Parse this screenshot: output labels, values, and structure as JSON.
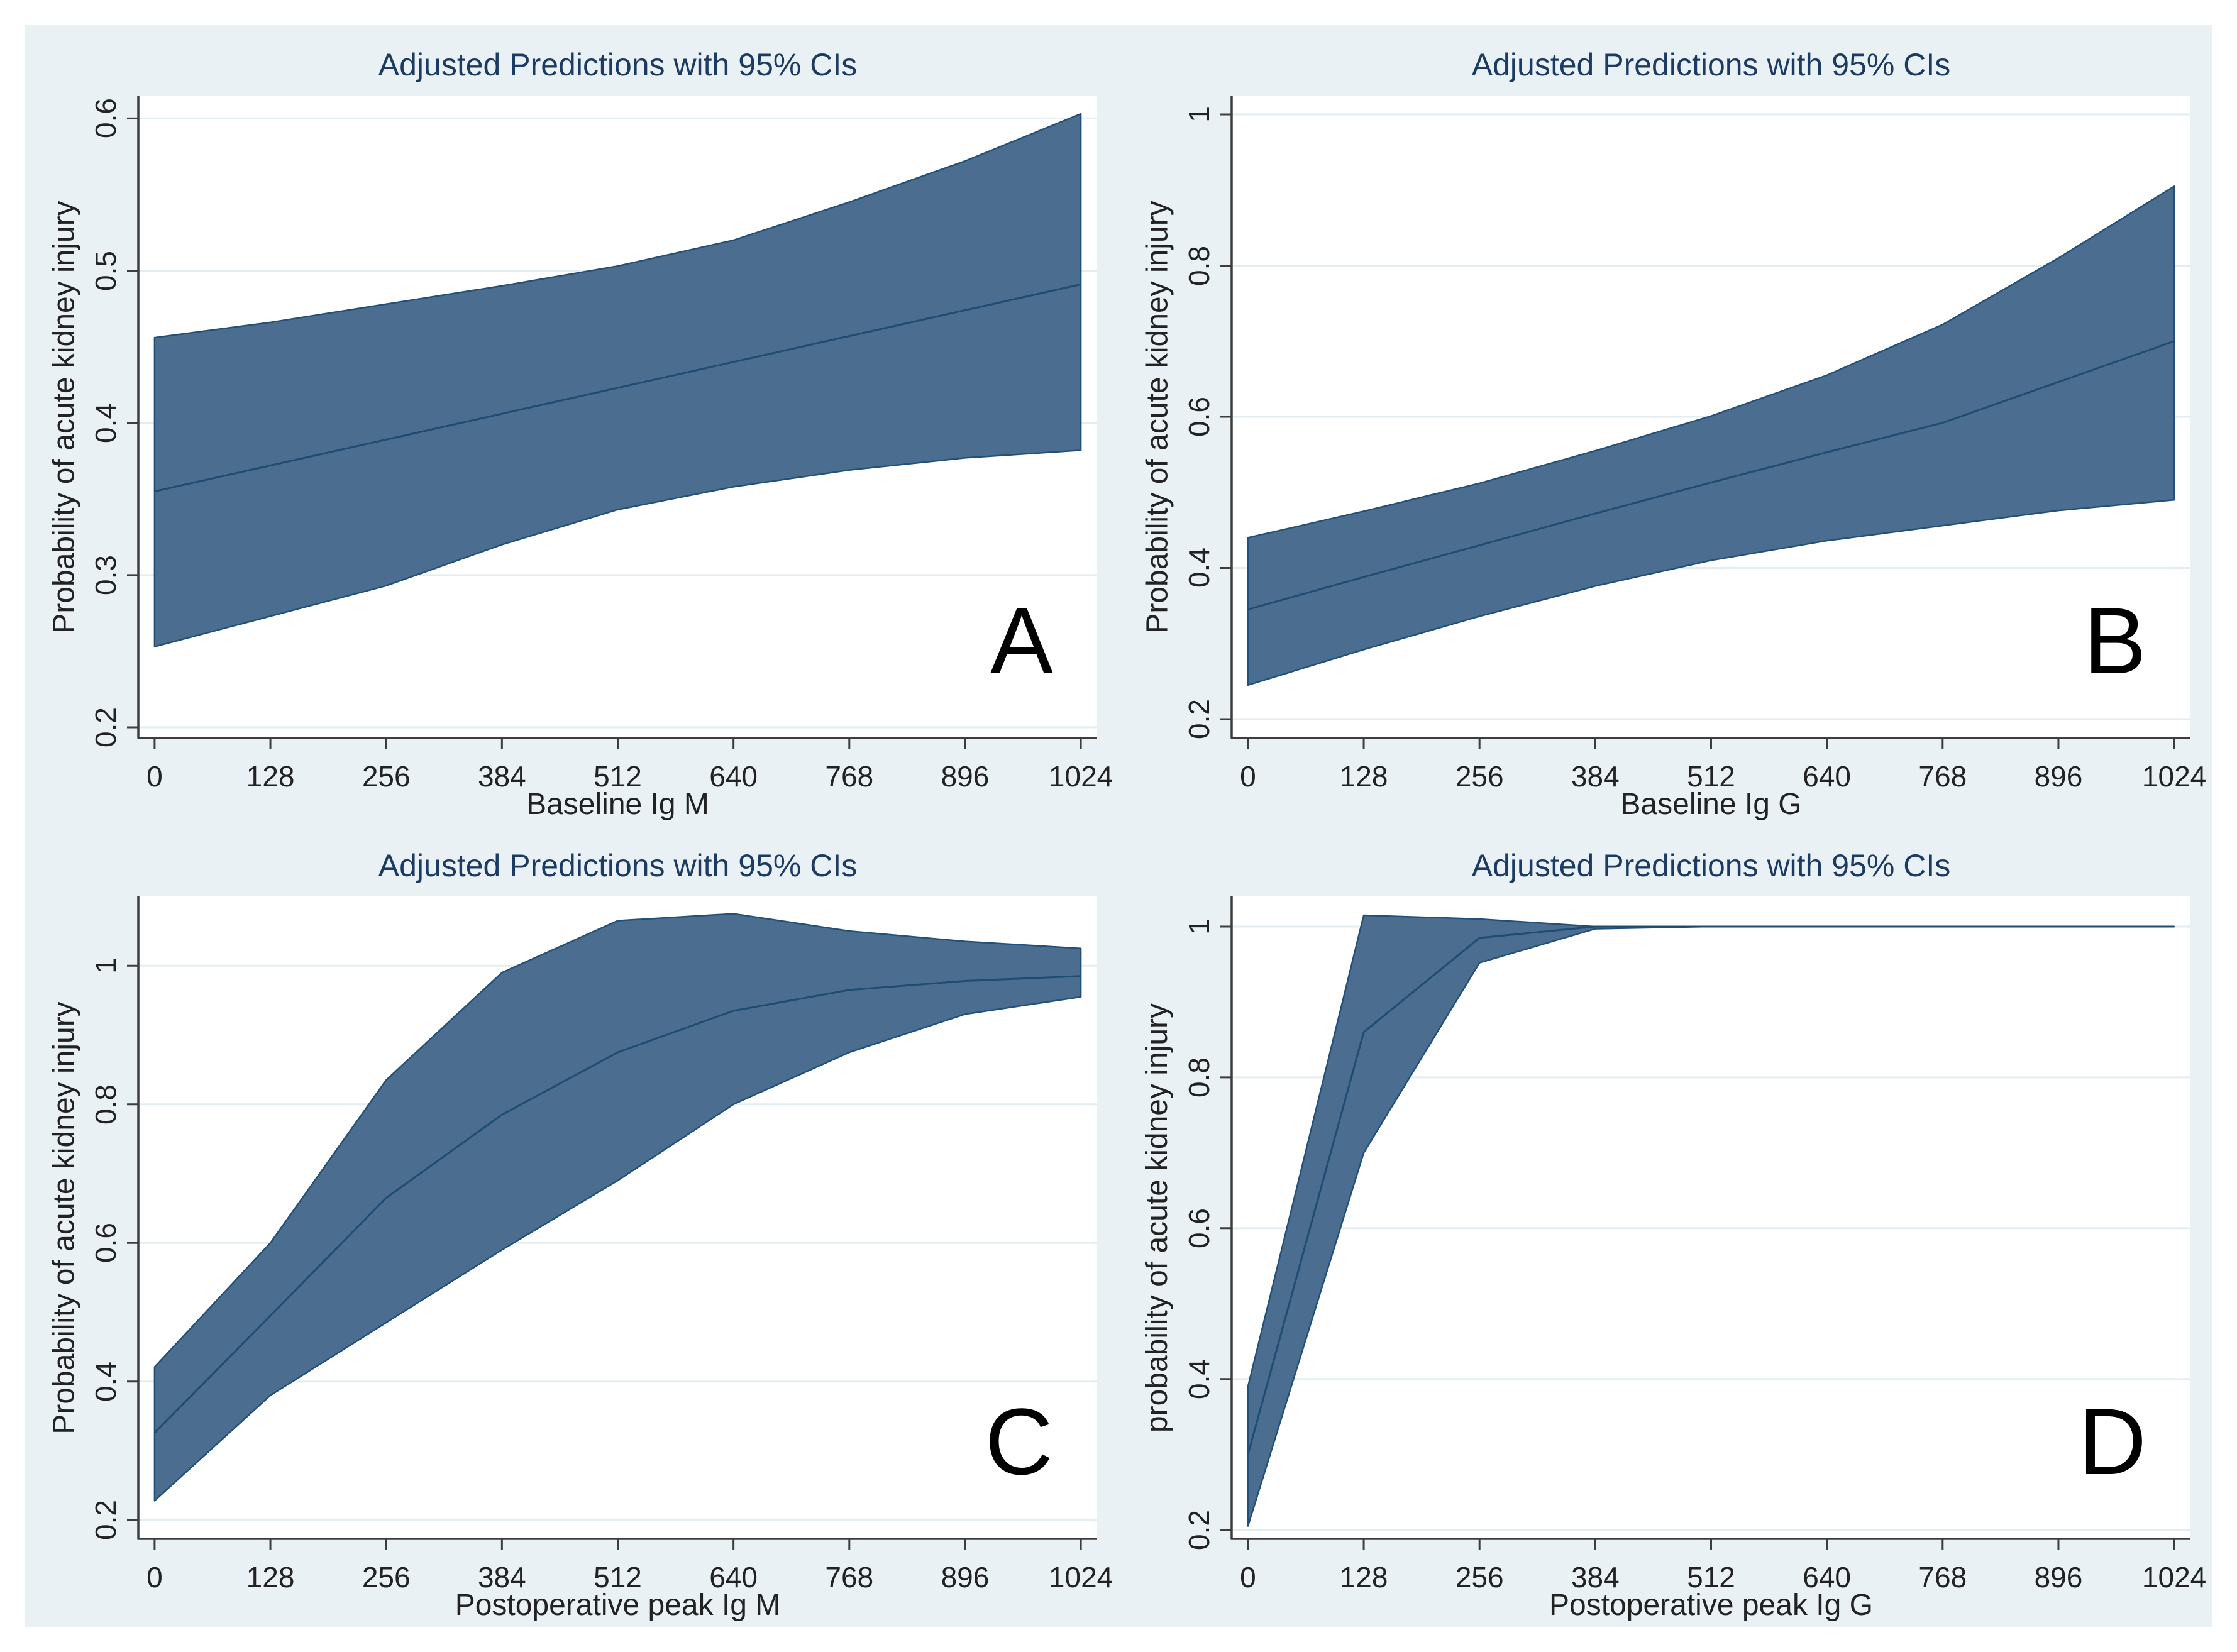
{
  "style": {
    "canvas_bg": "#e9f1f4",
    "plot_bg": "#ffffff",
    "grid_color": "#e3edf1",
    "band_fill": "#4a6d90",
    "band_edge": "#235078",
    "line_color": "#1f4c73",
    "axis_color": "#3d3d3d",
    "tick_text": "#222222",
    "title_color": "#1c3b63",
    "letter_color": "#000000"
  },
  "chart_data": [
    {
      "type": "area",
      "title": "Adjusted Predictions with 95% CIs",
      "letter": "A",
      "xlabel": "Baseline Ig M",
      "ylabel": "Probability of acute kidney injury",
      "x": [
        0,
        128,
        256,
        384,
        512,
        640,
        768,
        896,
        1024
      ],
      "xticks": [
        0,
        128,
        256,
        384,
        512,
        640,
        768,
        896,
        1024
      ],
      "xtick_labels": [
        "0",
        "128",
        "256",
        "384",
        "512",
        "640",
        "768",
        "896",
        "1024"
      ],
      "xlim": [
        -18,
        1042
      ],
      "yticks": [
        0.2,
        0.3,
        0.4,
        0.5,
        0.6
      ],
      "ytick_labels": [
        "0.2",
        "0.3",
        "0.4",
        "0.5",
        "0.6"
      ],
      "ylim": [
        0.193,
        0.615
      ],
      "grid": true,
      "legend": "none",
      "series": [
        {
          "name": "mean_prediction",
          "values": [
            0.355,
            0.372,
            0.389,
            0.406,
            0.423,
            0.44,
            0.457,
            0.474,
            0.491
          ]
        },
        {
          "name": "upper_95ci",
          "values": [
            0.456,
            0.466,
            0.478,
            0.49,
            0.503,
            0.52,
            0.545,
            0.572,
            0.603
          ]
        },
        {
          "name": "lower_95ci",
          "values": [
            0.253,
            0.273,
            0.293,
            0.32,
            0.343,
            0.358,
            0.369,
            0.377,
            0.382
          ]
        }
      ]
    },
    {
      "type": "area",
      "title": "Adjusted Predictions with 95% CIs",
      "letter": "B",
      "xlabel": "Baseline Ig G",
      "ylabel": "Probability of acute kidney injury",
      "x": [
        0,
        128,
        256,
        384,
        512,
        640,
        768,
        896,
        1024
      ],
      "xticks": [
        0,
        128,
        256,
        384,
        512,
        640,
        768,
        896,
        1024
      ],
      "xtick_labels": [
        "0",
        "128",
        "256",
        "384",
        "512",
        "640",
        "768",
        "896",
        "1024"
      ],
      "xlim": [
        -18,
        1042
      ],
      "yticks": [
        0.2,
        0.4,
        0.6,
        0.8,
        1
      ],
      "ytick_labels": [
        "0.2",
        "0.4",
        "0.6",
        "0.8",
        "1"
      ],
      "ylim": [
        0.175,
        1.025
      ],
      "grid": true,
      "legend": "none",
      "series": [
        {
          "name": "mean_prediction",
          "values": [
            0.345,
            0.388,
            0.43,
            0.472,
            0.513,
            0.553,
            0.592,
            0.646,
            0.7
          ]
        },
        {
          "name": "upper_95ci",
          "values": [
            0.44,
            0.475,
            0.512,
            0.555,
            0.601,
            0.655,
            0.722,
            0.81,
            0.905
          ]
        },
        {
          "name": "lower_95ci",
          "values": [
            0.245,
            0.292,
            0.336,
            0.376,
            0.41,
            0.436,
            0.456,
            0.476,
            0.49
          ]
        }
      ]
    },
    {
      "type": "area",
      "title": "Adjusted Predictions with 95% CIs",
      "letter": "C",
      "xlabel": "Postoperative peak Ig M",
      "ylabel": "Probability of acute kidney injury",
      "x": [
        0,
        128,
        256,
        384,
        512,
        640,
        768,
        896,
        1024
      ],
      "xticks": [
        0,
        128,
        256,
        384,
        512,
        640,
        768,
        896,
        1024
      ],
      "xtick_labels": [
        "0",
        "128",
        "256",
        "384",
        "512",
        "640",
        "768",
        "896",
        "1024"
      ],
      "xlim": [
        -18,
        1042
      ],
      "yticks": [
        0.2,
        0.4,
        0.6,
        0.8,
        1
      ],
      "ytick_labels": [
        "0.2",
        "0.4",
        "0.6",
        "0.8",
        "1"
      ],
      "ylim": [
        0.173,
        1.1
      ],
      "grid": true,
      "legend": "none",
      "series": [
        {
          "name": "mean_prediction",
          "values": [
            0.326,
            0.495,
            0.665,
            0.785,
            0.875,
            0.935,
            0.965,
            0.978,
            0.985
          ]
        },
        {
          "name": "upper_95ci",
          "values": [
            0.421,
            0.6,
            0.835,
            0.99,
            1.065,
            1.075,
            1.05,
            1.035,
            1.025
          ]
        },
        {
          "name": "lower_95ci",
          "values": [
            0.228,
            0.38,
            0.485,
            0.59,
            0.69,
            0.8,
            0.875,
            0.93,
            0.955
          ]
        }
      ]
    },
    {
      "type": "area",
      "title": "Adjusted Predictions with 95% CIs",
      "letter": "D",
      "xlabel": "Postoperative peak Ig G",
      "ylabel": "probability of acute kidney injury",
      "x": [
        0,
        128,
        256,
        384,
        512,
        640,
        768,
        896,
        1024
      ],
      "xticks": [
        0,
        128,
        256,
        384,
        512,
        640,
        768,
        896,
        1024
      ],
      "xtick_labels": [
        "0",
        "128",
        "256",
        "384",
        "512",
        "640",
        "768",
        "896",
        "1024"
      ],
      "xlim": [
        -18,
        1042
      ],
      "yticks": [
        0.2,
        0.4,
        0.6,
        0.8,
        1
      ],
      "ytick_labels": [
        "0.2",
        "0.4",
        "0.6",
        "0.8",
        "1"
      ],
      "ylim": [
        0.188,
        1.04
      ],
      "grid": true,
      "legend": "none",
      "series": [
        {
          "name": "mean_prediction",
          "values": [
            0.3,
            0.86,
            0.985,
            1.0,
            1.0,
            1.0,
            1.0,
            1.0,
            1.0
          ]
        },
        {
          "name": "upper_95ci",
          "values": [
            0.39,
            1.015,
            1.01,
            1.0,
            1.0,
            1.0,
            1.0,
            1.0,
            1.0
          ]
        },
        {
          "name": "lower_95ci",
          "values": [
            0.205,
            0.7,
            0.952,
            0.997,
            1.0,
            1.0,
            1.0,
            1.0,
            1.0
          ]
        }
      ]
    }
  ]
}
